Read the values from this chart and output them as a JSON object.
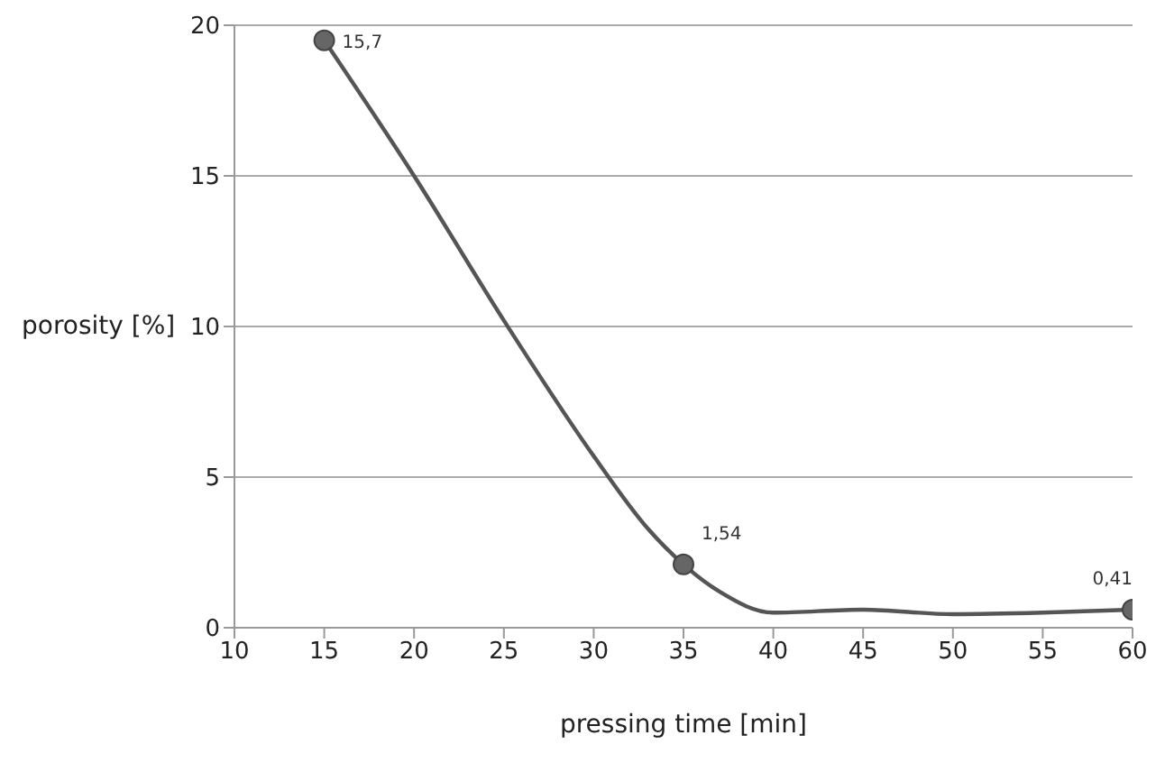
{
  "chart_data": {
    "type": "line",
    "xlabel": "pressing time [min]",
    "ylabel": "porosity [%]",
    "xlim": [
      10,
      60
    ],
    "xticks": [
      10,
      15,
      20,
      25,
      30,
      35,
      40,
      45,
      50,
      55,
      60
    ],
    "ylim": [
      0,
      20
    ],
    "yticks": [
      0,
      5,
      10,
      15,
      20
    ],
    "grid": "y",
    "line_style": "solid",
    "series": [
      {
        "marker": "none",
        "color": "#555555",
        "x": [
          15,
          20,
          25,
          30,
          33,
          35,
          37,
          40,
          45,
          50,
          55,
          60
        ],
        "values": [
          19.5,
          15,
          10.2,
          5.7,
          3.3,
          2.1,
          1.2,
          0.5,
          0.6,
          0.45,
          0.5,
          0.6
        ]
      },
      {
        "type": "scatter",
        "marker": "circle",
        "color": "#666666",
        "x": [
          15,
          35,
          60
        ],
        "values": [
          19.5,
          2.1,
          0.6
        ]
      }
    ],
    "annotations": [
      {
        "text": "15,7",
        "x": 15,
        "y": 19.5
      },
      {
        "text": "1,54",
        "x": 35,
        "y": 2.1
      },
      {
        "text": "0,41",
        "x": 60,
        "y": 0.6
      }
    ]
  }
}
